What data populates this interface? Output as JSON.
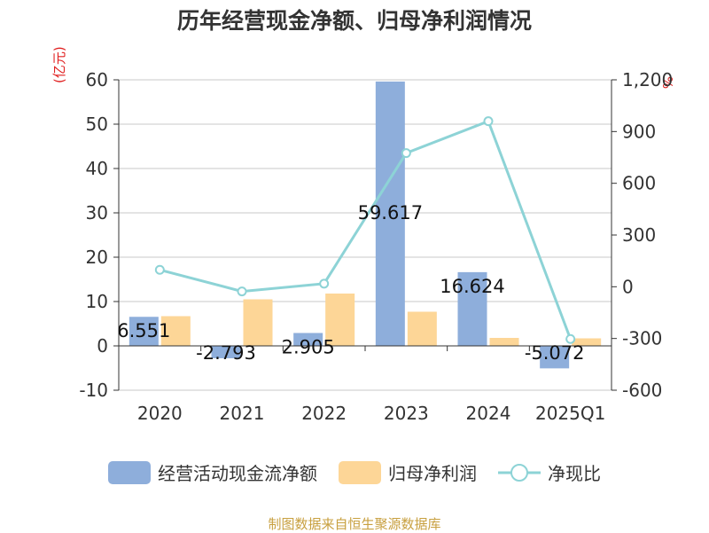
{
  "title": "历年经营现金净额、归母净利润情况",
  "unit_left": "(亿元)",
  "unit_right": "%",
  "source": "制图数据来自恒生聚源数据库",
  "colors": {
    "cash": "#8eaedb",
    "profit": "#fdd697",
    "ratio": "#8dd3d6"
  },
  "chart_data": {
    "type": "bar",
    "categories": [
      "2020",
      "2021",
      "2022",
      "2023",
      "2024",
      "2025Q1"
    ],
    "series": [
      {
        "name": "经营活动现金流净额",
        "type": "bar",
        "axis": "left",
        "values": [
          6.551,
          -2.793,
          2.905,
          59.617,
          16.624,
          -5.072
        ],
        "labels": [
          "6.551",
          "-2.793",
          "2.905",
          "59.617",
          "16.624",
          "-5.072"
        ]
      },
      {
        "name": "归母净利润",
        "type": "bar",
        "axis": "left",
        "values": [
          6.7,
          10.5,
          11.8,
          7.7,
          1.8,
          1.7
        ]
      },
      {
        "name": "净现比",
        "type": "line",
        "axis": "right",
        "values": [
          98,
          -27,
          18,
          775,
          960,
          -303
        ]
      }
    ],
    "ylim_left": [
      -10,
      60
    ],
    "yticks_left": [
      -10,
      0,
      10,
      20,
      30,
      40,
      50,
      60
    ],
    "ylim_right": [
      -600,
      1200
    ],
    "yticks_right": [
      -600,
      -300,
      0,
      300,
      600,
      900,
      1200
    ],
    "ytick_labels_right": [
      "-600",
      "-300",
      "0",
      "300",
      "600",
      "900",
      "1,200"
    ],
    "grid": true,
    "legend_position": "bottom"
  }
}
